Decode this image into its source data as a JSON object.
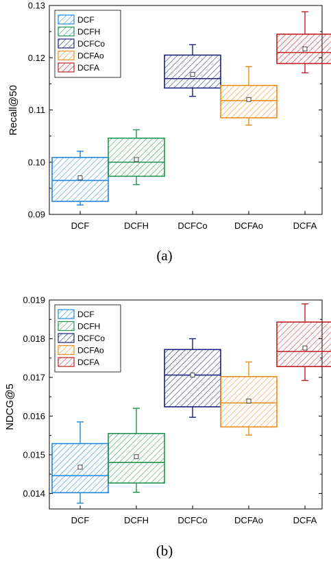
{
  "colors": {
    "DCF": "#1f87e0",
    "DCFH": "#1e9450",
    "DCFCo": "#1c1f78",
    "DCFAo": "#ef8c1b",
    "DCFA": "#c01e22"
  },
  "chart_data": [
    {
      "type": "box",
      "panel": "(a)",
      "caption": "(a)",
      "ylabel": "Recall@50",
      "xlabel": "",
      "ylim": [
        0.09,
        0.13
      ],
      "yticks": [
        "0.09",
        "0.10",
        "0.11",
        "0.12",
        "0.13"
      ],
      "ytick_values": [
        0.09,
        0.1,
        0.11,
        0.12,
        0.13
      ],
      "categories": [
        "DCF",
        "DCFH",
        "DCFCo",
        "DCFAo",
        "DCFA"
      ],
      "legend": [
        "DCF",
        "DCFH",
        "DCFCo",
        "DCFAo",
        "DCFA"
      ],
      "legend_position": "top-left",
      "grid": false,
      "boxes": [
        {
          "name": "DCF",
          "whisker_low": 0.0918,
          "q1": 0.0925,
          "median": 0.0965,
          "q3": 0.1009,
          "whisker_high": 0.1021,
          "mean": 0.097
        },
        {
          "name": "DCFH",
          "whisker_low": 0.0957,
          "q1": 0.0973,
          "median": 0.1,
          "q3": 0.1046,
          "whisker_high": 0.1062,
          "mean": 0.1005
        },
        {
          "name": "DCFCo",
          "whisker_low": 0.1126,
          "q1": 0.1142,
          "median": 0.116,
          "q3": 0.1205,
          "whisker_high": 0.1225,
          "mean": 0.1168
        },
        {
          "name": "DCFAo",
          "whisker_low": 0.1071,
          "q1": 0.1085,
          "median": 0.1118,
          "q3": 0.1147,
          "whisker_high": 0.1183,
          "mean": 0.112
        },
        {
          "name": "DCFA",
          "whisker_low": 0.1171,
          "q1": 0.1189,
          "median": 0.121,
          "q3": 0.1245,
          "whisker_high": 0.1288,
          "mean": 0.1217
        }
      ]
    },
    {
      "type": "box",
      "panel": "(b)",
      "caption": "(b)",
      "ylabel": "NDCG@5",
      "xlabel": "",
      "ylim": [
        0.0136,
        0.019
      ],
      "yticks": [
        "0.014",
        "0.015",
        "0.016",
        "0.017",
        "0.018",
        "0.019"
      ],
      "ytick_values": [
        0.014,
        0.015,
        0.016,
        0.017,
        0.018,
        0.019
      ],
      "categories": [
        "DCF",
        "DCFH",
        "DCFCo",
        "DCFAo",
        "DCFA"
      ],
      "legend": [
        "DCF",
        "DCFH",
        "DCFCo",
        "DCFAo",
        "DCFA"
      ],
      "legend_position": "top-left",
      "grid": false,
      "boxes": [
        {
          "name": "DCF",
          "whisker_low": 0.01375,
          "q1": 0.01402,
          "median": 0.01446,
          "q3": 0.01529,
          "whisker_high": 0.01585,
          "mean": 0.01468
        },
        {
          "name": "DCFH",
          "whisker_low": 0.01403,
          "q1": 0.01427,
          "median": 0.0148,
          "q3": 0.01555,
          "whisker_high": 0.0162,
          "mean": 0.01495
        },
        {
          "name": "DCFCo",
          "whisker_low": 0.01597,
          "q1": 0.01624,
          "median": 0.01706,
          "q3": 0.01772,
          "whisker_high": 0.018,
          "mean": 0.01706
        },
        {
          "name": "DCFAo",
          "whisker_low": 0.01551,
          "q1": 0.01572,
          "median": 0.01634,
          "q3": 0.01702,
          "whisker_high": 0.0174,
          "mean": 0.01639
        },
        {
          "name": "DCFA",
          "whisker_low": 0.01692,
          "q1": 0.01728,
          "median": 0.01767,
          "q3": 0.01843,
          "whisker_high": 0.0189,
          "mean": 0.01776
        }
      ]
    }
  ]
}
